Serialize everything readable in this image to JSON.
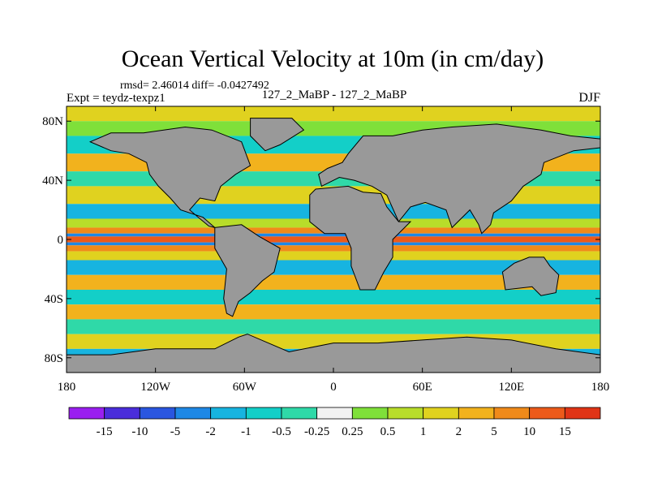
{
  "chart_data": {
    "type": "heatmap",
    "title": "Ocean Vertical Velocity at 10m (in cm/day)",
    "stats_line": "rmsd= 2.46014 diff= -0.0427492",
    "left_label": "Expt = teydz-texpz1",
    "center_label": "127_2_MaBP - 127_2_MaBP",
    "right_label": "DJF",
    "x_ticks": [
      {
        "value": -180,
        "label": "180"
      },
      {
        "value": -120,
        "label": "120W"
      },
      {
        "value": -60,
        "label": "60W"
      },
      {
        "value": 0,
        "label": "0"
      },
      {
        "value": 60,
        "label": "60E"
      },
      {
        "value": 120,
        "label": "120E"
      },
      {
        "value": 180,
        "label": "180"
      }
    ],
    "y_ticks": [
      {
        "value": 80,
        "label": "80N"
      },
      {
        "value": 40,
        "label": "40N"
      },
      {
        "value": 0,
        "label": "0"
      },
      {
        "value": -40,
        "label": "40S"
      },
      {
        "value": -80,
        "label": "80S"
      }
    ],
    "xlim": [
      -180,
      180
    ],
    "ylim": [
      -90,
      90
    ],
    "colorbar": {
      "labels": [
        "-15",
        "-10",
        "-5",
        "-2",
        "-1",
        "-0.5",
        "-0.25",
        "0.25",
        "0.5",
        "1",
        "2",
        "5",
        "10",
        "15"
      ],
      "colors": [
        "#9a1ff0",
        "#4a2ddb",
        "#2a56e0",
        "#1e88e6",
        "#17b4e0",
        "#13cfc8",
        "#2fd9a8",
        "#f2f2f2",
        "#7fe03a",
        "#b8dd2a",
        "#e0d21f",
        "#f2b21d",
        "#f08a1a",
        "#ec5a1a",
        "#e03416"
      ]
    },
    "land_color": "#999999",
    "zonal_bands": [
      {
        "lat": [
          80,
          90
        ],
        "value": 1
      },
      {
        "lat": [
          70,
          80
        ],
        "value": 0.25
      },
      {
        "lat": [
          58,
          70
        ],
        "value": -1
      },
      {
        "lat": [
          46,
          58
        ],
        "value": 2
      },
      {
        "lat": [
          36,
          46
        ],
        "value": -0.5
      },
      {
        "lat": [
          24,
          36
        ],
        "value": 1
      },
      {
        "lat": [
          14,
          24
        ],
        "value": -2
      },
      {
        "lat": [
          8,
          14
        ],
        "value": 0.5
      },
      {
        "lat": [
          4,
          8
        ],
        "value": 5
      },
      {
        "lat": [
          2,
          4
        ],
        "value": -5
      },
      {
        "lat": [
          -2,
          2
        ],
        "value": 10
      },
      {
        "lat": [
          -4,
          -2
        ],
        "value": -5
      },
      {
        "lat": [
          -8,
          -4
        ],
        "value": 5
      },
      {
        "lat": [
          -14,
          -8
        ],
        "value": 1
      },
      {
        "lat": [
          -24,
          -14
        ],
        "value": -2
      },
      {
        "lat": [
          -34,
          -24
        ],
        "value": 2
      },
      {
        "lat": [
          -44,
          -34
        ],
        "value": -1
      },
      {
        "lat": [
          -54,
          -44
        ],
        "value": 2
      },
      {
        "lat": [
          -64,
          -54
        ],
        "value": -0.5
      },
      {
        "lat": [
          -74,
          -64
        ],
        "value": 1
      },
      {
        "lat": [
          -90,
          -74
        ],
        "value": -2
      }
    ]
  }
}
